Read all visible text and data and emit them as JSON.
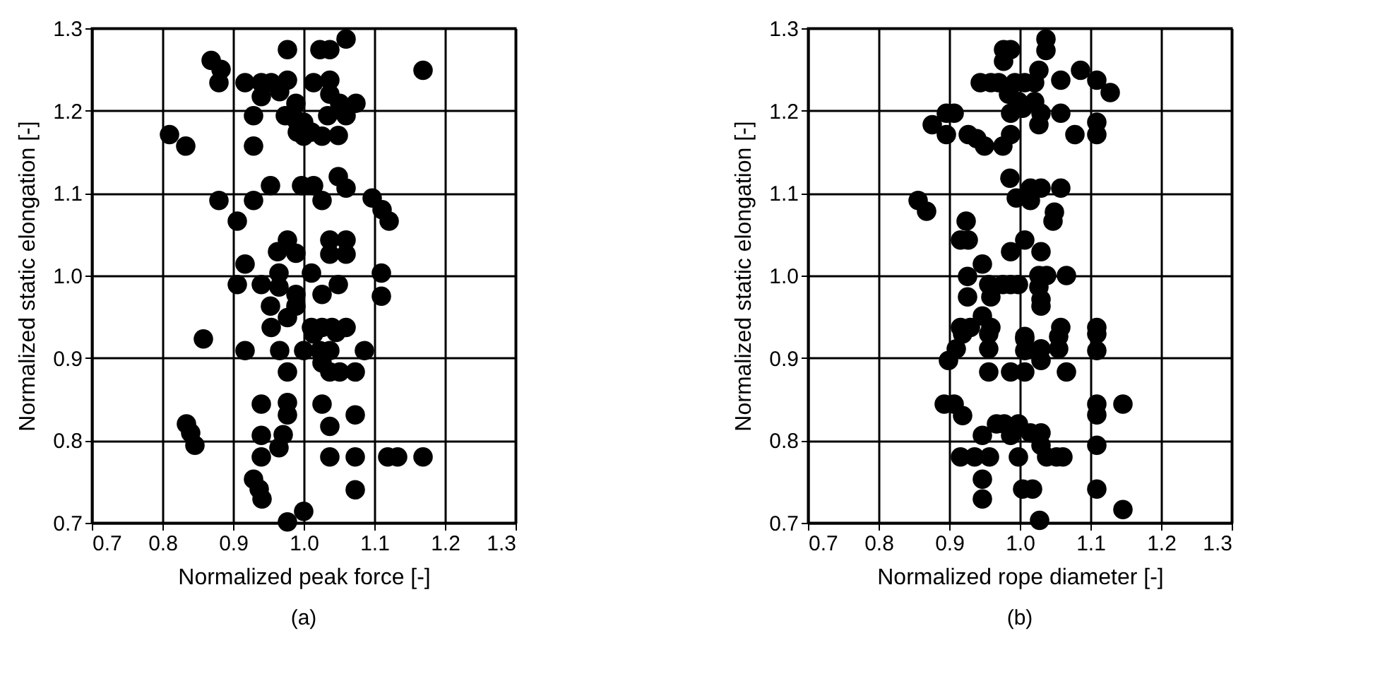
{
  "chart_data": [
    {
      "type": "scatter",
      "xlabel": "Normalized peak force [-]",
      "ylabel": "Normalized static elongation [-]",
      "annotations": [
        "(a)"
      ],
      "grid": true,
      "marker": "circle",
      "xlim": [
        0.7,
        1.3
      ],
      "ylim": [
        0.7,
        1.3
      ],
      "xticks": [
        {
          "value": 0.7,
          "label": "0.7"
        },
        {
          "value": 0.8,
          "label": "0.8"
        },
        {
          "value": 0.9,
          "label": "0.9"
        },
        {
          "value": 1.0,
          "label": "1.0"
        },
        {
          "value": 1.1,
          "label": "1.1"
        },
        {
          "value": 1.2,
          "label": "1.2"
        },
        {
          "value": 1.3,
          "label": "1.3"
        }
      ],
      "yticks": [
        {
          "value": 0.7,
          "label": "0.7"
        },
        {
          "value": 0.8,
          "label": "0.8"
        },
        {
          "value": 0.9,
          "label": "0.9"
        },
        {
          "value": 1.0,
          "label": "1.0"
        },
        {
          "value": 1.1,
          "label": "1.1"
        },
        {
          "value": 1.2,
          "label": "1.2"
        },
        {
          "value": 1.3,
          "label": "1.3"
        }
      ],
      "series": [
        {
          "color": "#000000",
          "x": [
            0.869,
            0.883,
            0.88,
            0.977,
            1.023,
            1.037,
            1.06,
            1.169,
            0.917,
            0.94,
            0.954,
            0.977,
            1.014,
            1.037,
            0.94,
            0.966,
            0.989,
            1.037,
            1.051,
            1.074,
            1.06,
            1.034,
            0.929,
            0.974,
            0.989,
            1.0,
            0.991,
            1.0,
            1.011,
            1.026,
            1.049,
            0.81,
            0.833,
            0.929,
            1.049,
            1.06,
            0.997,
            1.014,
            1.026,
            0.953,
            0.929,
            0.88,
            1.097,
            1.111,
            1.121,
            0.906,
            0.977,
            0.963,
            0.989,
            1.037,
            1.06,
            1.037,
            1.06,
            0.917,
            0.906,
            0.94,
            0.965,
            0.965,
            0.989,
            1.011,
            1.026,
            1.049,
            1.11,
            1.11,
            0.989,
            0.977,
            0.953,
            0.954,
            0.858,
            1.011,
            1.026,
            1.04,
            1.06,
            0.917,
            0.966,
            1.0,
            1.023,
            1.037,
            1.086,
            1.026,
            1.037,
            1.051,
            1.073,
            0.977,
            1.014,
            1.046,
            0.94,
            0.977,
            0.977,
            1.026,
            1.073,
            1.037,
            0.834,
            0.84,
            0.846,
            0.94,
            0.971,
            0.965,
            0.94,
            1.037,
            1.073,
            1.119,
            1.133,
            1.169,
            0.929,
            0.937,
            0.941,
            1.073,
            1.0,
            0.977
          ],
          "values": [
            1.261,
            1.25,
            1.234,
            1.274,
            1.274,
            1.274,
            1.287,
            1.249,
            1.234,
            1.234,
            1.234,
            1.237,
            1.234,
            1.237,
            1.217,
            1.223,
            1.209,
            1.22,
            1.209,
            1.209,
            1.194,
            1.194,
            1.194,
            1.194,
            1.189,
            1.186,
            1.174,
            1.169,
            1.174,
            1.169,
            1.17,
            1.171,
            1.157,
            1.157,
            1.12,
            1.106,
            1.109,
            1.109,
            1.091,
            1.109,
            1.091,
            1.091,
            1.094,
            1.08,
            1.066,
            1.066,
            1.043,
            1.029,
            1.027,
            1.043,
            1.043,
            1.026,
            1.026,
            1.014,
            0.989,
            0.989,
            1.003,
            0.986,
            0.977,
            1.003,
            0.977,
            0.989,
            1.003,
            0.975,
            0.963,
            0.949,
            0.963,
            0.937,
            0.923,
            0.937,
            0.937,
            0.937,
            0.937,
            0.909,
            0.909,
            0.909,
            0.909,
            0.909,
            0.909,
            0.894,
            0.883,
            0.883,
            0.883,
            0.883,
            0.929,
            0.931,
            0.844,
            0.846,
            0.831,
            0.844,
            0.831,
            0.817,
            0.82,
            0.809,
            0.794,
            0.806,
            0.807,
            0.791,
            0.78,
            0.78,
            0.78,
            0.78,
            0.78,
            0.78,
            0.753,
            0.741,
            0.729,
            0.74,
            0.714,
            0.701
          ]
        }
      ]
    },
    {
      "type": "scatter",
      "xlabel": "Normalized rope diameter [-]",
      "ylabel": "Normalized static elongation [-]",
      "annotations": [
        "(b)"
      ],
      "grid": true,
      "marker": "circle",
      "xlim": [
        0.7,
        1.3
      ],
      "ylim": [
        0.7,
        1.3
      ],
      "xticks": [
        {
          "value": 0.7,
          "label": "0.7"
        },
        {
          "value": 0.8,
          "label": "0.8"
        },
        {
          "value": 0.9,
          "label": "0.9"
        },
        {
          "value": 1.0,
          "label": "1.0"
        },
        {
          "value": 1.1,
          "label": "1.1"
        },
        {
          "value": 1.2,
          "label": "1.2"
        },
        {
          "value": 1.3,
          "label": "1.3"
        }
      ],
      "yticks": [
        {
          "value": 0.7,
          "label": "0.7"
        },
        {
          "value": 0.8,
          "label": "0.8"
        },
        {
          "value": 0.9,
          "label": "0.9"
        },
        {
          "value": 1.0,
          "label": "1.0"
        },
        {
          "value": 1.1,
          "label": "1.1"
        },
        {
          "value": 1.2,
          "label": "1.2"
        },
        {
          "value": 1.3,
          "label": "1.3"
        }
      ],
      "series": [
        {
          "color": "#000000",
          "x": [
            0.977,
            0.987,
            0.977,
            1.037,
            1.037,
            1.027,
            1.086,
            1.109,
            1.128,
            1.058,
            0.944,
            0.959,
            0.97,
            0.993,
            1.007,
            1.021,
            0.984,
            0.998,
            0.987,
            1.004,
            1.021,
            1.03,
            1.027,
            1.058,
            1.078,
            1.109,
            1.109,
            0.876,
            0.896,
            0.907,
            0.896,
            0.927,
            0.939,
            0.95,
            0.976,
            0.987,
            0.986,
            0.995,
            1.015,
            1.03,
            1.015,
            1.049,
            1.058,
            1.047,
            0.856,
            0.868,
            0.924,
            0.916,
            0.927,
            0.987,
            1.007,
            1.03,
            0.947,
            0.926,
            0.926,
            0.956,
            0.959,
            0.976,
            0.987,
            0.998,
            1.027,
            1.038,
            1.027,
            1.03,
            1.03,
            1.066,
            0.947,
            0.916,
            0.93,
            0.959,
            1.058,
            1.109,
            1.007,
            0.899,
            0.91,
            0.919,
            0.956,
            0.956,
            0.956,
            0.987,
            1.007,
            1.007,
            1.007,
            1.03,
            1.03,
            1.055,
            1.055,
            1.066,
            1.109,
            1.109,
            0.893,
            0.907,
            0.919,
            1.109,
            1.109,
            1.146,
            0.947,
            0.967,
            0.978,
            0.987,
            0.998,
            1.015,
            1.03,
            1.03,
            1.038,
            1.052,
            1.061,
            0.998,
            0.916,
            0.936,
            0.957,
            0.947,
            0.947,
            1.004,
            1.018,
            1.109,
            1.109,
            1.146,
            1.028
          ],
          "values": [
            1.274,
            1.274,
            1.26,
            1.287,
            1.273,
            1.249,
            1.249,
            1.237,
            1.222,
            1.237,
            1.234,
            1.234,
            1.234,
            1.234,
            1.234,
            1.234,
            1.22,
            1.211,
            1.197,
            1.203,
            1.211,
            1.197,
            1.183,
            1.197,
            1.171,
            1.186,
            1.171,
            1.183,
            1.197,
            1.197,
            1.171,
            1.171,
            1.166,
            1.157,
            1.157,
            1.171,
            1.118,
            1.094,
            1.106,
            1.106,
            1.091,
            1.077,
            1.106,
            1.066,
            1.091,
            1.078,
            1.066,
            1.043,
            1.043,
            1.029,
            1.043,
            1.029,
            1.014,
            0.999,
            0.974,
            0.989,
            0.974,
            0.989,
            0.989,
            0.989,
            1.0,
            1.0,
            0.986,
            0.971,
            0.963,
            1.0,
            0.951,
            0.937,
            0.937,
            0.937,
            0.937,
            0.937,
            0.926,
            0.897,
            0.911,
            0.929,
            0.929,
            0.911,
            0.883,
            0.883,
            0.883,
            0.923,
            0.909,
            0.911,
            0.897,
            0.911,
            0.926,
            0.883,
            0.909,
            0.929,
            0.844,
            0.844,
            0.83,
            0.844,
            0.831,
            0.844,
            0.806,
            0.82,
            0.82,
            0.806,
            0.82,
            0.809,
            0.809,
            0.794,
            0.78,
            0.78,
            0.78,
            0.78,
            0.78,
            0.78,
            0.78,
            0.753,
            0.729,
            0.741,
            0.741,
            0.794,
            0.741,
            0.716,
            0.703
          ]
        }
      ]
    }
  ]
}
